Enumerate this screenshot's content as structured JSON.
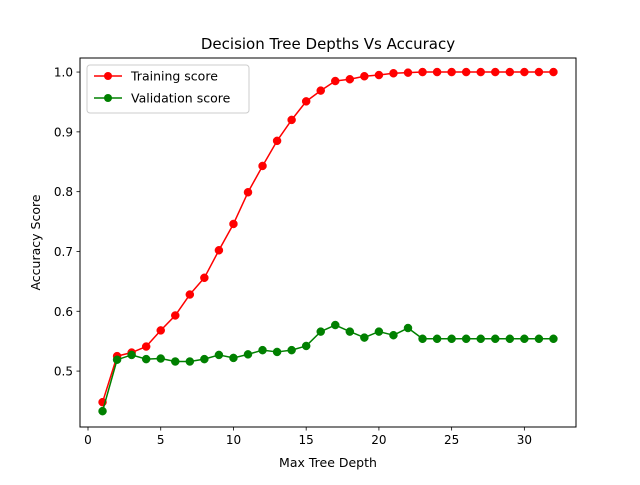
{
  "chart_data": {
    "type": "line",
    "title": "Decision Tree Depths Vs Accuracy",
    "xlabel": "Max Tree Depth",
    "ylabel": "Accuracy Score",
    "xlim": [
      -0.55,
      33.55
    ],
    "ylim": [
      0.4065,
      1.0235
    ],
    "xticks": [
      0,
      5,
      10,
      15,
      20,
      25,
      30
    ],
    "yticks": [
      0.5,
      0.6,
      0.7,
      0.8,
      0.9,
      1.0
    ],
    "xtick_labels": [
      "0",
      "5",
      "10",
      "15",
      "20",
      "25",
      "30"
    ],
    "ytick_labels": [
      "0.5",
      "0.6",
      "0.7",
      "0.8",
      "0.9",
      "1.0"
    ],
    "grid": false,
    "legend_position": "upper-left",
    "x": [
      1,
      2,
      3,
      4,
      5,
      6,
      7,
      8,
      9,
      10,
      11,
      12,
      13,
      14,
      15,
      16,
      17,
      18,
      19,
      20,
      21,
      22,
      23,
      24,
      25,
      26,
      27,
      28,
      29,
      30,
      31,
      32
    ],
    "series": [
      {
        "name": "Training score",
        "color": "#ff0000",
        "marker": "circle",
        "values": [
          0.448,
          0.525,
          0.531,
          0.541,
          0.568,
          0.593,
          0.628,
          0.656,
          0.702,
          0.746,
          0.799,
          0.843,
          0.885,
          0.92,
          0.951,
          0.969,
          0.985,
          0.988,
          0.993,
          0.995,
          0.998,
          0.999,
          1.0,
          1.0,
          1.0,
          1.0,
          1.0,
          1.0,
          1.0,
          1.0,
          1.0,
          1.0
        ]
      },
      {
        "name": "Validation score",
        "color": "#008000",
        "marker": "circle",
        "values": [
          0.433,
          0.519,
          0.527,
          0.52,
          0.521,
          0.516,
          0.516,
          0.52,
          0.527,
          0.522,
          0.528,
          0.535,
          0.532,
          0.535,
          0.542,
          0.566,
          0.577,
          0.566,
          0.556,
          0.566,
          0.56,
          0.572,
          0.554,
          0.554,
          0.554,
          0.554,
          0.554,
          0.554,
          0.554,
          0.554,
          0.554,
          0.554
        ]
      }
    ]
  }
}
